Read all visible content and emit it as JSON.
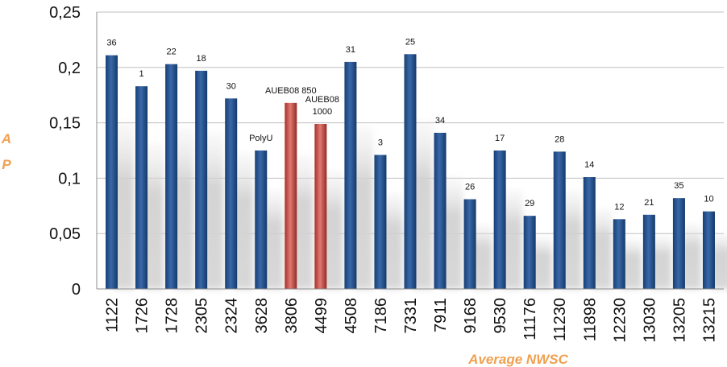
{
  "chart_data": {
    "type": "bar",
    "xlabel": "Average NWSC",
    "ylabel": "A P",
    "ylabel_lines": [
      "A",
      "P"
    ],
    "ylim": [
      0,
      0.25
    ],
    "yticks": [
      0,
      0.05,
      0.1,
      0.15,
      0.2,
      0.25
    ],
    "ytick_labels": [
      "0",
      "0,05",
      "0,1",
      "0,15",
      "0,2",
      "0,25"
    ],
    "grid": true,
    "legend": "none",
    "categories": [
      "1122",
      "1726",
      "1728",
      "2305",
      "2324",
      "3628",
      "3806",
      "4499",
      "4508",
      "7186",
      "7331",
      "7911",
      "9168",
      "9530",
      "11176",
      "11230",
      "11898",
      "12230",
      "13030",
      "13205",
      "13215"
    ],
    "values": [
      0.211,
      0.183,
      0.203,
      0.197,
      0.172,
      0.125,
      0.168,
      0.149,
      0.205,
      0.121,
      0.212,
      0.141,
      0.081,
      0.125,
      0.066,
      0.124,
      0.101,
      0.063,
      0.067,
      0.082,
      0.07
    ],
    "bar_labels": [
      [
        "36"
      ],
      [
        "1"
      ],
      [
        "22"
      ],
      [
        "18"
      ],
      [
        "30"
      ],
      [
        "PolyU"
      ],
      [
        "AUEB08 850"
      ],
      [
        "AUEB08",
        "1000"
      ],
      [
        "31"
      ],
      [
        "3"
      ],
      [
        "25"
      ],
      [
        "34"
      ],
      [
        "26"
      ],
      [
        "17"
      ],
      [
        "29"
      ],
      [
        "28"
      ],
      [
        "14"
      ],
      [
        "12"
      ],
      [
        "21"
      ],
      [
        "35"
      ],
      [
        "10"
      ]
    ],
    "highlighted": [
      6,
      7
    ],
    "colors": {
      "bar": "#1f4e8c",
      "bar_light": "#4a78b8",
      "bar_dark": "#143a6b",
      "highlight": "#c8443f",
      "highlight_light": "#e27a74",
      "highlight_dark": "#962a26",
      "axis_title": "#f0a050",
      "grid": "#bfbfbf",
      "shadow": "#c8c8c8"
    }
  }
}
